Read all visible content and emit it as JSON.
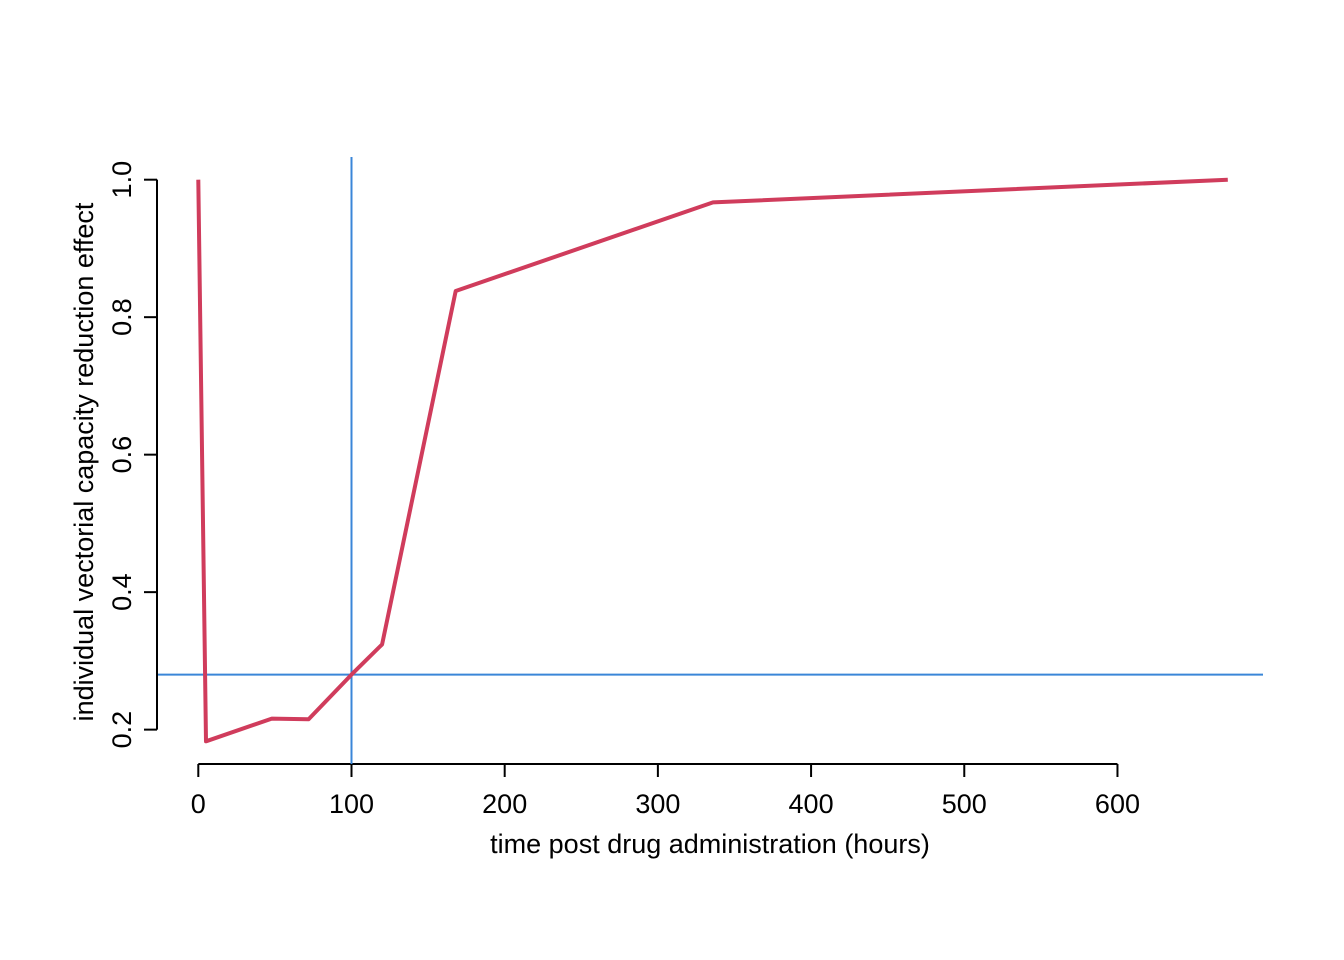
{
  "chart_data": {
    "type": "line",
    "xlabel": "time post drug administration (hours)",
    "ylabel": "individual vectorial capacity reduction effect",
    "xlim": [
      -25,
      695
    ],
    "ylim": [
      0.15,
      1.033
    ],
    "xticks": [
      0,
      100,
      200,
      300,
      400,
      500,
      600
    ],
    "yticks": [
      0.2,
      0.4,
      0.6,
      0.8,
      1.0
    ],
    "xtick_labels": [
      "0",
      "100",
      "200",
      "300",
      "400",
      "500",
      "600"
    ],
    "ytick_labels": [
      "0.2",
      "0.4",
      "0.6",
      "0.8",
      "1.0"
    ],
    "grid": false,
    "series": [
      {
        "color": "#d03c5c",
        "x": [
          0,
          5,
          48,
          72,
          100,
          120,
          168,
          336,
          672
        ],
        "y": [
          1.0,
          0.183,
          0.216,
          0.215,
          0.28,
          0.324,
          0.838,
          0.967,
          1.0
        ]
      }
    ],
    "reference_lines": {
      "color": "#3a86d8",
      "vertical_x": 100,
      "horizontal_y": 0.28
    }
  }
}
